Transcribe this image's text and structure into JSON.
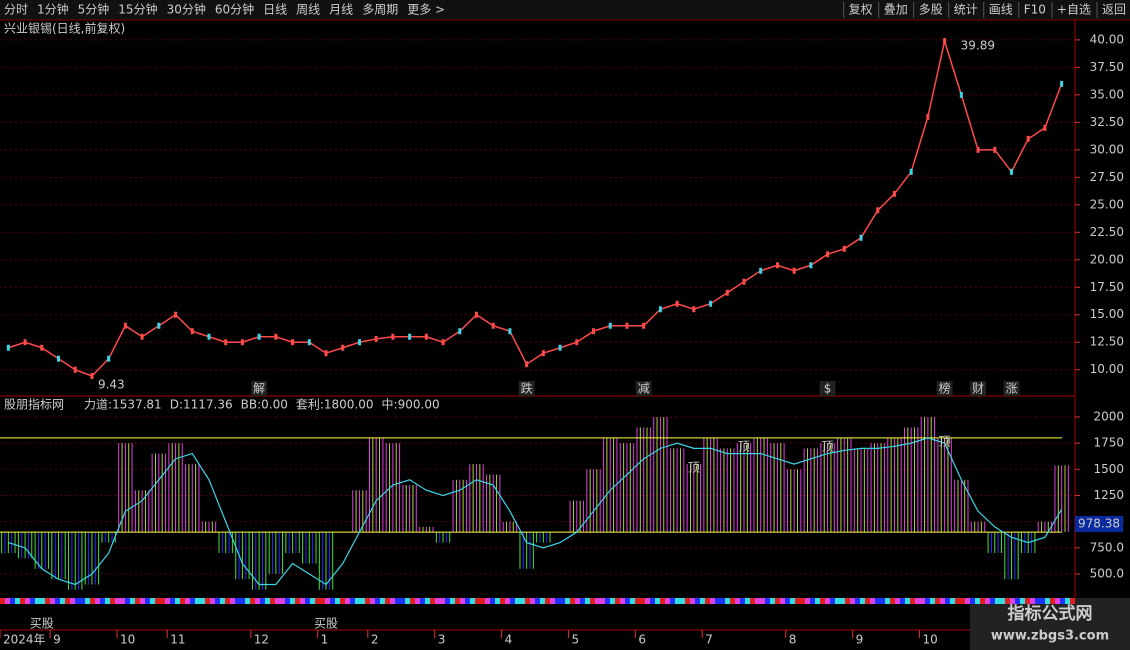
{
  "toolbar": {
    "left": [
      "分时",
      "1分钟",
      "5分钟",
      "15分钟",
      "30分钟",
      "60分钟",
      "日线",
      "周线",
      "月线",
      "多周期",
      "更多 >"
    ],
    "right": [
      "复权",
      "叠加",
      "多股",
      "统计",
      "画线",
      "F10",
      "+自选",
      "返回"
    ]
  },
  "watermark": {
    "title": "指标公式网",
    "url": "www.zbgs3.com"
  },
  "chart_data": [
    {
      "type": "line",
      "title": "兴业银锡(日线,前复权)",
      "categories": [
        "2024年",
        null,
        null,
        "9",
        null,
        null,
        null,
        "10",
        null,
        null,
        "11",
        null,
        null,
        null,
        null,
        "12",
        null,
        null,
        null,
        "1",
        null,
        null,
        "2",
        null,
        null,
        null,
        "3",
        null,
        null,
        null,
        "4",
        null,
        null,
        null,
        "5",
        null,
        null,
        null,
        "6",
        null,
        null,
        null,
        "7",
        null,
        null,
        null,
        null,
        "8",
        null,
        null,
        null,
        "9",
        null,
        null,
        null,
        "10",
        null,
        null,
        null,
        null,
        null,
        null,
        null,
        null
      ],
      "series": [
        {
          "name": "收盘",
          "color": "#ff4a4a",
          "values": [
            12,
            12.5,
            12,
            11,
            10,
            9.43,
            11,
            14,
            13,
            14,
            15,
            13.5,
            13,
            12.5,
            12.5,
            13,
            13,
            12.5,
            12.5,
            11.5,
            12,
            12.5,
            12.8,
            13,
            13,
            13,
            12.5,
            13.5,
            15,
            14,
            13.5,
            10.5,
            11.5,
            12,
            12.5,
            13.5,
            14,
            14,
            14,
            15.5,
            16,
            15.5,
            16,
            17,
            18,
            19,
            19.5,
            19,
            19.5,
            20.5,
            21,
            22,
            24.5,
            26,
            28,
            33,
            39.89,
            35,
            30,
            30,
            28,
            31,
            32,
            36
          ]
        }
      ],
      "high_index": 56,
      "low_index": 5,
      "markers": [
        {
          "text": "解",
          "at": 15,
          "color": "#3ad6e6"
        },
        {
          "text": "跌",
          "at": 31,
          "color": "#3ae65a"
        },
        {
          "text": "减",
          "at": 38,
          "color": "#3ae65a"
        },
        {
          "text": "$",
          "at": 49,
          "color": "#ff3030"
        },
        {
          "text": "榜",
          "at": 56,
          "color": "#ff9a50"
        },
        {
          "text": "财",
          "at": 58,
          "color": "#6aa8ff"
        },
        {
          "text": "涨",
          "at": 60,
          "color": "#ff5050"
        }
      ],
      "ylim": [
        7.7,
        40.9
      ],
      "yticks": [
        {
          "value": 10,
          "label": "10.00"
        },
        {
          "value": 12.5,
          "label": "12.50"
        },
        {
          "value": 15,
          "label": "15.00"
        },
        {
          "value": 17.5,
          "label": "17.50"
        },
        {
          "value": 20,
          "label": "20.00"
        },
        {
          "value": 22.5,
          "label": "22.50"
        },
        {
          "value": 25,
          "label": "25.00"
        },
        {
          "value": 27.5,
          "label": "27.50"
        },
        {
          "value": 30,
          "label": "30.00"
        },
        {
          "value": 32.5,
          "label": "32.50"
        },
        {
          "value": 35,
          "label": "35.00"
        },
        {
          "value": 37.5,
          "label": "37.50"
        },
        {
          "value": 40,
          "label": "40.00"
        }
      ],
      "grid": true
    },
    {
      "type": "bar",
      "title": "股朋指标网",
      "legend": [
        {
          "name": "力道",
          "value": 1537.81,
          "color": "#ffffff"
        },
        {
          "name": "D",
          "value": 1117.36,
          "color": "#3ad6e6"
        },
        {
          "name": "BB",
          "value": {
            "value": 0,
            "label": "0.00"
          },
          "color": "#e040e0"
        },
        {
          "name": "套利",
          "value": {
            "value": 1800,
            "label": "1800.00"
          },
          "color": "#ffff40"
        },
        {
          "name": "中",
          "value": {
            "value": 900,
            "label": "900.00"
          },
          "color": "#40e040"
        }
      ],
      "levels": [
        {
          "value": 1800,
          "color": "#ffff40"
        },
        {
          "value": 900,
          "color": "#ffff40"
        }
      ],
      "series": [
        {
          "name": "力道",
          "color": "#e040e0",
          "values": [
            700,
            650,
            550,
            450,
            350,
            400,
            800,
            1750,
            1300,
            1650,
            1750,
            1550,
            1000,
            700,
            450,
            350,
            500,
            700,
            600,
            350,
            900,
            1300,
            1800,
            1750,
            1350,
            950,
            800,
            1400,
            1550,
            1450,
            1000,
            550,
            800,
            900,
            1200,
            1500,
            1800,
            1750,
            1900,
            2000,
            1700,
            1550,
            1800,
            1700,
            1750,
            1800,
            1750,
            1500,
            1700,
            1750,
            1800,
            1700,
            1750,
            1800,
            1900,
            2000,
            1800,
            1400,
            1000,
            700,
            450,
            700,
            1000,
            1537.81
          ]
        },
        {
          "name": "D",
          "color": "#3ad6e6",
          "values": [
            800,
            750,
            550,
            450,
            400,
            500,
            700,
            1100,
            1200,
            1400,
            1600,
            1650,
            1400,
            1000,
            600,
            400,
            400,
            600,
            500,
            400,
            600,
            900,
            1200,
            1350,
            1400,
            1300,
            1250,
            1300,
            1400,
            1350,
            1100,
            800,
            750,
            800,
            900,
            1100,
            1300,
            1450,
            1600,
            1700,
            1750,
            1700,
            1700,
            1650,
            1650,
            1650,
            1600,
            1550,
            1600,
            1650,
            1680,
            1700,
            1700,
            1720,
            1750,
            1800,
            1750,
            1400,
            1100,
            950,
            850,
            800,
            850,
            1117.36
          ]
        }
      ],
      "annotations": [
        {
          "text": "买股",
          "at": 2
        },
        {
          "text": "买股",
          "at": 19
        },
        {
          "text": "顶",
          "at": 41
        },
        {
          "text": "顶",
          "at": 44
        },
        {
          "text": "顶",
          "at": 49
        },
        {
          "text": "顶",
          "at": 56
        }
      ],
      "current_value": 978.38,
      "ylim": [
        290,
        2181
      ],
      "yticks": [
        {
          "value": 500,
          "label": "500.0"
        },
        {
          "value": 750,
          "label": "750.0"
        },
        1000,
        1250,
        1500,
        1750,
        2000
      ],
      "grid": true
    }
  ]
}
